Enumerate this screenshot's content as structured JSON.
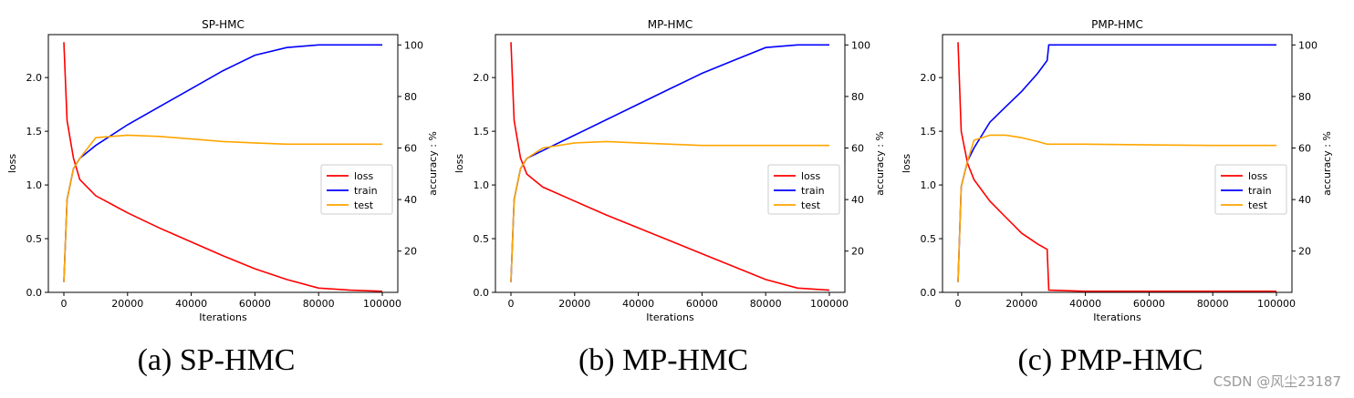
{
  "chart_data": [
    {
      "type": "line",
      "title": "SP-HMC",
      "caption": "(a) SP-HMC",
      "xlabel": "Iterations",
      "ylabel": "loss",
      "y2label": "accuracy : %",
      "xlim": [
        0,
        100000
      ],
      "ylim": [
        0,
        2.4
      ],
      "y2lim": [
        4,
        104
      ],
      "xticks": [
        "0",
        "20000",
        "40000",
        "60000",
        "80000",
        "100000"
      ],
      "yticks": [
        "0.0",
        "0.5",
        "1.0",
        "1.5",
        "2.0"
      ],
      "y2ticks": [
        "20",
        "40",
        "60",
        "80",
        "100"
      ],
      "legend": {
        "placement": "center-right",
        "entries": [
          "loss",
          "train",
          "test"
        ]
      },
      "series": [
        {
          "name": "loss",
          "axis": "left",
          "color": "#ff0000",
          "x": [
            0,
            1000,
            3000,
            5000,
            10000,
            20000,
            30000,
            40000,
            50000,
            60000,
            70000,
            80000,
            90000,
            100000
          ],
          "values": [
            2.33,
            1.6,
            1.25,
            1.05,
            0.9,
            0.74,
            0.6,
            0.47,
            0.34,
            0.22,
            0.12,
            0.04,
            0.02,
            0.01
          ]
        },
        {
          "name": "train",
          "axis": "right",
          "color": "#0000ff",
          "x": [
            0,
            1000,
            3000,
            5000,
            10000,
            20000,
            30000,
            40000,
            50000,
            60000,
            70000,
            80000,
            90000,
            100000
          ],
          "values": [
            8,
            40,
            52,
            56,
            61,
            69,
            76,
            83,
            90,
            96,
            99,
            100,
            100,
            100
          ]
        },
        {
          "name": "test",
          "axis": "right",
          "color": "#ffa500",
          "x": [
            0,
            1000,
            3000,
            5000,
            10000,
            20000,
            30000,
            40000,
            50000,
            60000,
            70000,
            80000,
            90000,
            100000
          ],
          "values": [
            8,
            40,
            52,
            56,
            64,
            65,
            64.5,
            63.5,
            62.5,
            62,
            61.5,
            61.5,
            61.5,
            61.5
          ]
        }
      ]
    },
    {
      "type": "line",
      "title": "MP-HMC",
      "caption": "(b) MP-HMC",
      "xlabel": "Iterations",
      "ylabel": "loss",
      "y2label": "accuracy : %",
      "xlim": [
        0,
        100000
      ],
      "ylim": [
        0,
        2.4
      ],
      "y2lim": [
        4,
        104
      ],
      "xticks": [
        "0",
        "20000",
        "40000",
        "60000",
        "80000",
        "100000"
      ],
      "yticks": [
        "0.0",
        "0.5",
        "1.0",
        "1.5",
        "2.0"
      ],
      "y2ticks": [
        "20",
        "40",
        "60",
        "80",
        "100"
      ],
      "legend": {
        "placement": "center-right",
        "entries": [
          "loss",
          "train",
          "test"
        ]
      },
      "series": [
        {
          "name": "loss",
          "axis": "left",
          "color": "#ff0000",
          "x": [
            0,
            1000,
            3000,
            5000,
            10000,
            20000,
            30000,
            40000,
            50000,
            60000,
            70000,
            80000,
            90000,
            100000
          ],
          "values": [
            2.33,
            1.6,
            1.25,
            1.1,
            0.98,
            0.85,
            0.72,
            0.6,
            0.48,
            0.36,
            0.24,
            0.12,
            0.04,
            0.02
          ]
        },
        {
          "name": "train",
          "axis": "right",
          "color": "#0000ff",
          "x": [
            0,
            1000,
            3000,
            5000,
            10000,
            20000,
            30000,
            40000,
            50000,
            60000,
            70000,
            80000,
            90000,
            100000
          ],
          "values": [
            8,
            40,
            52,
            56,
            59,
            65,
            71,
            77,
            83,
            89,
            94,
            99,
            100,
            100
          ]
        },
        {
          "name": "test",
          "axis": "right",
          "color": "#ffa500",
          "x": [
            0,
            1000,
            3000,
            5000,
            10000,
            20000,
            30000,
            40000,
            50000,
            60000,
            70000,
            80000,
            90000,
            100000
          ],
          "values": [
            8,
            40,
            52,
            56,
            60,
            62,
            62.5,
            62,
            61.5,
            61,
            61,
            61,
            61,
            61
          ]
        }
      ]
    },
    {
      "type": "line",
      "title": "PMP-HMC",
      "caption": "(c) PMP-HMC",
      "xlabel": "Iterations",
      "ylabel": "loss",
      "y2label": "accuracy : %",
      "xlim": [
        0,
        100000
      ],
      "ylim": [
        0,
        2.4
      ],
      "y2lim": [
        4,
        104
      ],
      "xticks": [
        "0",
        "20000",
        "40000",
        "60000",
        "80000",
        "100000"
      ],
      "yticks": [
        "0.0",
        "0.5",
        "1.0",
        "1.5",
        "2.0"
      ],
      "y2ticks": [
        "20",
        "40",
        "60",
        "80",
        "100"
      ],
      "legend": {
        "placement": "center-right",
        "entries": [
          "loss",
          "train",
          "test"
        ]
      },
      "series": [
        {
          "name": "loss",
          "axis": "left",
          "color": "#ff0000",
          "x": [
            0,
            1000,
            3000,
            5000,
            10000,
            15000,
            20000,
            25000,
            28000,
            28500,
            40000,
            60000,
            80000,
            100000
          ],
          "values": [
            2.33,
            1.5,
            1.2,
            1.05,
            0.85,
            0.7,
            0.55,
            0.45,
            0.4,
            0.02,
            0.01,
            0.01,
            0.01,
            0.01
          ]
        },
        {
          "name": "train",
          "axis": "right",
          "color": "#0000ff",
          "x": [
            0,
            1000,
            3000,
            5000,
            10000,
            15000,
            20000,
            25000,
            28000,
            28500,
            40000,
            60000,
            80000,
            100000
          ],
          "values": [
            8,
            45,
            55,
            60,
            70,
            76,
            82,
            89,
            94,
            100,
            100,
            100,
            100,
            100
          ]
        },
        {
          "name": "test",
          "axis": "right",
          "color": "#ffa500",
          "x": [
            0,
            1000,
            3000,
            5000,
            10000,
            15000,
            20000,
            25000,
            28000,
            28500,
            40000,
            60000,
            80000,
            100000
          ],
          "values": [
            8,
            45,
            55,
            63,
            65,
            65,
            64,
            62.5,
            61.5,
            61.5,
            61.5,
            61.2,
            61,
            61
          ]
        }
      ]
    }
  ],
  "watermark": "CSDN @风尘23187"
}
